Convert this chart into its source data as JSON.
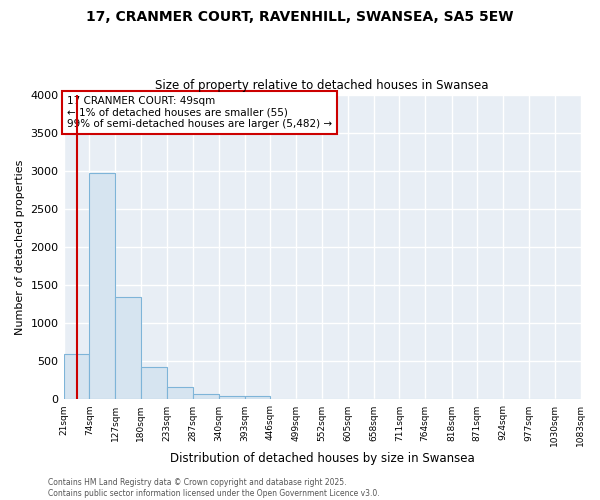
{
  "title": "17, CRANMER COURT, RAVENHILL, SWANSEA, SA5 5EW",
  "subtitle": "Size of property relative to detached houses in Swansea",
  "xlabel": "Distribution of detached houses by size in Swansea",
  "ylabel": "Number of detached properties",
  "bar_edges": [
    21,
    74,
    127,
    180,
    233,
    287,
    340,
    393,
    446,
    499,
    552,
    605,
    658,
    711,
    764,
    818,
    871,
    924,
    977,
    1030,
    1083
  ],
  "bar_heights": [
    590,
    2970,
    1340,
    430,
    160,
    75,
    50,
    45,
    0,
    0,
    0,
    0,
    0,
    0,
    0,
    0,
    0,
    0,
    0,
    0
  ],
  "bar_color": "#d6e4f0",
  "bar_edge_color": "#7eb4d8",
  "property_line_x": 49,
  "property_line_color": "#cc0000",
  "annotation_text": "17 CRANMER COURT: 49sqm\n← 1% of detached houses are smaller (55)\n99% of semi-detached houses are larger (5,482) →",
  "annotation_box_color": "#ffffff",
  "annotation_box_edge": "#cc0000",
  "ylim": [
    0,
    4000
  ],
  "background_color": "#ffffff",
  "plot_bg_color": "#e8eef5",
  "grid_color": "#ffffff",
  "footer_text": "Contains HM Land Registry data © Crown copyright and database right 2025.\nContains public sector information licensed under the Open Government Licence v3.0.",
  "tick_labels": [
    "21sqm",
    "74sqm",
    "127sqm",
    "180sqm",
    "233sqm",
    "287sqm",
    "340sqm",
    "393sqm",
    "446sqm",
    "499sqm",
    "552sqm",
    "605sqm",
    "658sqm",
    "711sqm",
    "764sqm",
    "818sqm",
    "871sqm",
    "924sqm",
    "977sqm",
    "1030sqm",
    "1083sqm"
  ]
}
